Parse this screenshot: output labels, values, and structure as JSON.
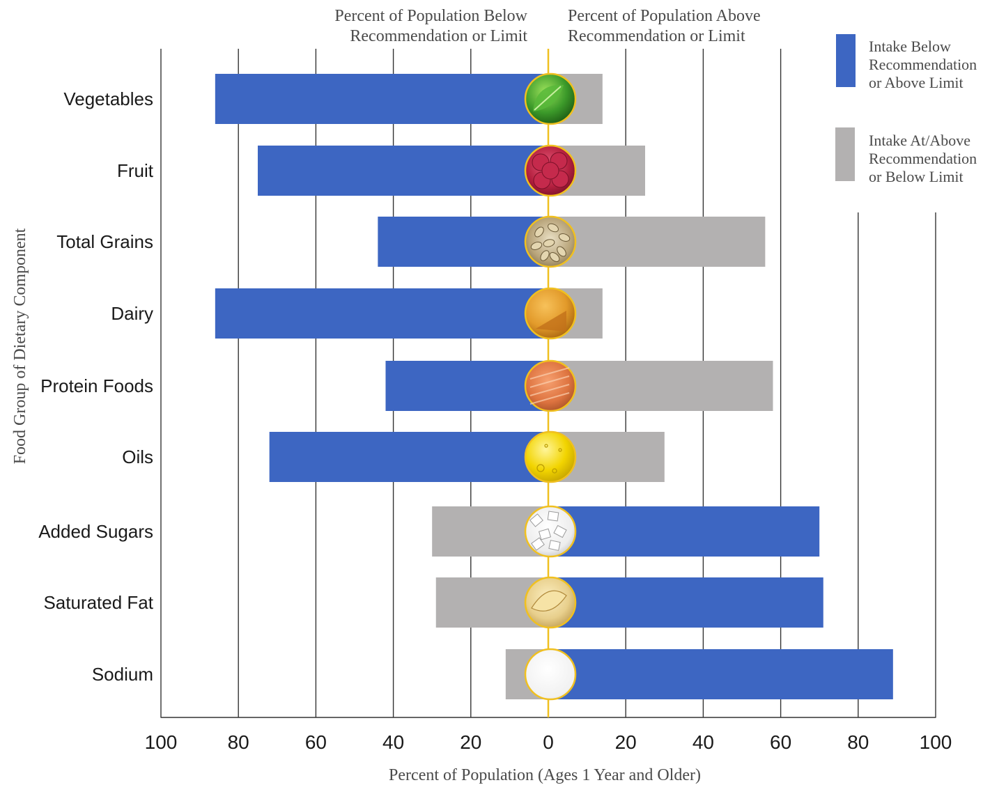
{
  "chart_data": {
    "type": "bar",
    "orientation": "horizontal-diverging",
    "headings": {
      "left": [
        "Percent of Population Below",
        "Recommendation or Limit"
      ],
      "right": [
        "Percent of Population Above",
        "Recommendation or Limit"
      ]
    },
    "xlabel": "Percent of Population (Ages 1 Year and Older)",
    "ylabel": "Food Group of Dietary Component",
    "xlim": [
      -100,
      100
    ],
    "x_ticks": [
      "100",
      "80",
      "60",
      "40",
      "20",
      "0",
      "20",
      "40",
      "60",
      "80",
      "100"
    ],
    "grid": true,
    "categories": [
      "Vegetables",
      "Fruit",
      "Total Grains",
      "Dairy",
      "Protein Foods",
      "Oils",
      "Added Sugars",
      "Saturated Fat",
      "Sodium"
    ],
    "series": [
      {
        "name": "Below",
        "values": [
          86,
          75,
          44,
          86,
          42,
          72,
          30,
          29,
          11
        ]
      },
      {
        "name": "Above",
        "values": [
          14,
          25,
          56,
          14,
          58,
          30,
          70,
          71,
          89
        ]
      }
    ],
    "blue_side": [
      "left",
      "left",
      "left",
      "left",
      "left",
      "left",
      "right",
      "right",
      "right"
    ],
    "center_icons": [
      "spinach-icon",
      "raspberry-icon",
      "grains-icon",
      "cheese-icon",
      "salmon-icon",
      "oil-icon",
      "sugar-cubes-icon",
      "butter-icon",
      "salt-icon"
    ],
    "legend": [
      {
        "color": "#3d66c2",
        "lines": [
          "Intake Below",
          "Recommendation",
          "or Above Limit"
        ]
      },
      {
        "color": "#b3b1b1",
        "lines": [
          "Intake At/Above",
          "Recommendation",
          "or Below Limit"
        ]
      }
    ],
    "legend_position": "top-right",
    "colors": {
      "blue": "#3d66c2",
      "gray": "#b3b1b1",
      "center_line": "#f0c020",
      "grid": "#333333"
    }
  }
}
